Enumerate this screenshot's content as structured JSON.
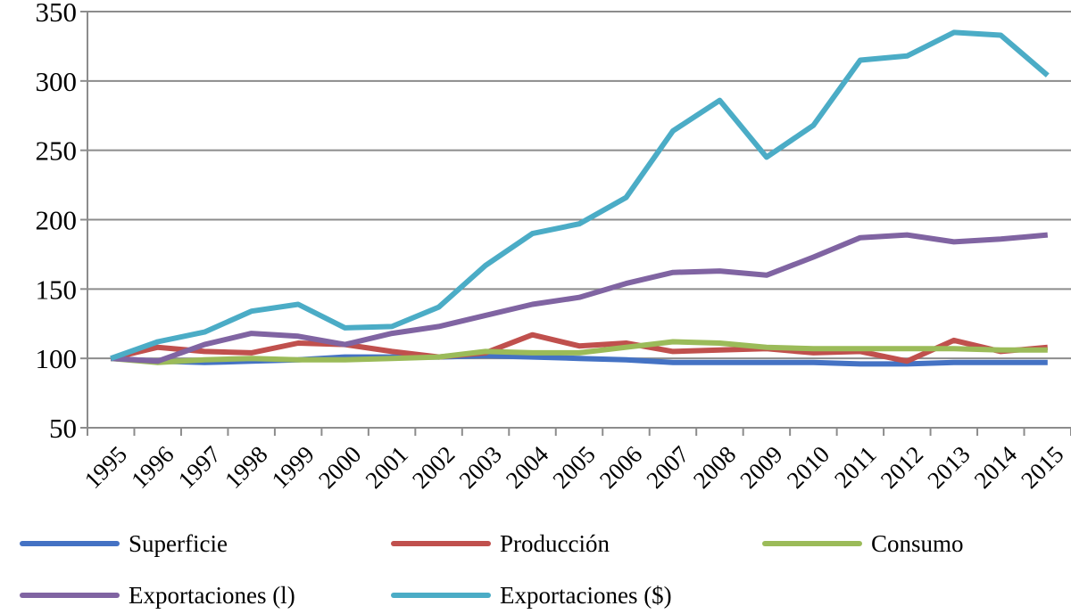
{
  "chart_data": {
    "type": "line",
    "title": "",
    "xlabel": "",
    "ylabel": "",
    "ylim": [
      50,
      350
    ],
    "yticks": [
      "50",
      "100",
      "150",
      "200",
      "250",
      "300",
      "350"
    ],
    "grid": true,
    "legend_position": "bottom",
    "categories": [
      "1995",
      "1996",
      "1997",
      "1998",
      "1999",
      "2000",
      "2001",
      "2002",
      "2003",
      "2004",
      "2005",
      "2006",
      "2007",
      "2008",
      "2009",
      "2010",
      "2011",
      "2012",
      "2013",
      "2014",
      "2015"
    ],
    "series": [
      {
        "name": "Superficie",
        "color": "#4472c4",
        "values": [
          100,
          98,
          97,
          98,
          99,
          101,
          101,
          101,
          102,
          101,
          100,
          99,
          97,
          97,
          97,
          97,
          96,
          96,
          97,
          97,
          97
        ]
      },
      {
        "name": "Producción",
        "color": "#c0504d",
        "values": [
          100,
          108,
          105,
          104,
          111,
          110,
          105,
          101,
          104,
          117,
          109,
          111,
          105,
          106,
          107,
          104,
          105,
          98,
          113,
          105,
          108
        ]
      },
      {
        "name": "Consumo",
        "color": "#9bbb59",
        "values": [
          100,
          97,
          99,
          100,
          99,
          99,
          100,
          101,
          105,
          104,
          104,
          108,
          112,
          111,
          108,
          107,
          107,
          107,
          107,
          106,
          106
        ]
      },
      {
        "name": "Exportaciones (l)",
        "color": "#8064a2",
        "values": [
          100,
          98,
          110,
          118,
          116,
          110,
          118,
          123,
          131,
          139,
          144,
          154,
          162,
          163,
          160,
          173,
          187,
          189,
          184,
          186,
          189
        ]
      },
      {
        "name": "Exportaciones ($)",
        "color": "#4bacc6",
        "values": [
          100,
          112,
          119,
          134,
          139,
          122,
          123,
          137,
          167,
          190,
          197,
          216,
          264,
          286,
          245,
          268,
          315,
          318,
          335,
          333,
          304
        ]
      }
    ]
  }
}
